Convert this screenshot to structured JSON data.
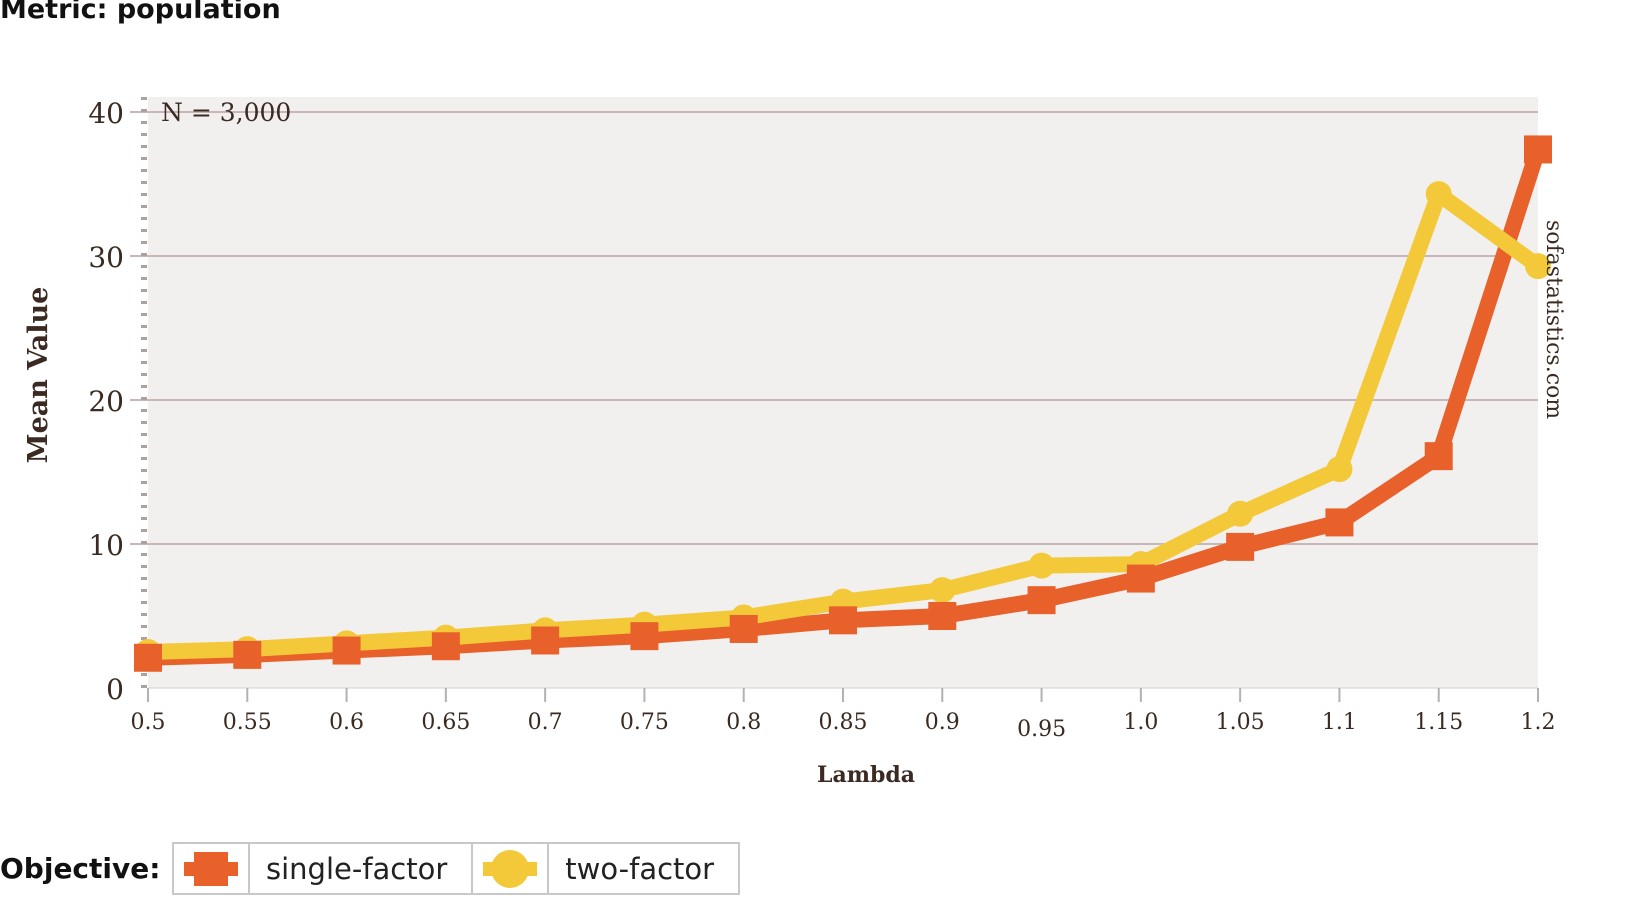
{
  "page": {
    "heading": "Metric: population",
    "legend_title": "Objective:"
  },
  "colors": {
    "plot_background": "#f2f0ef",
    "grid": "#c9b7b7",
    "axis_text": "#3a2a22",
    "single_factor": "#e8612a",
    "two_factor": "#f3c93a"
  },
  "chart_data": {
    "type": "line",
    "title": "",
    "xlabel": "Lambda",
    "ylabel": "Mean Value",
    "annotation": "N = 3,000",
    "watermark": "sofastatistics.com",
    "x": [
      "0.5",
      "0.55",
      "0.6",
      "0.65",
      "0.7",
      "0.75",
      "0.8",
      "0.85",
      "0.9",
      "0.95",
      "1.0",
      "1.05",
      "1.1",
      "1.15",
      "1.2"
    ],
    "ylim": [
      0,
      40
    ],
    "yticks": [
      "0",
      "10",
      "20",
      "30",
      "40"
    ],
    "grid": true,
    "legend_position": "bottom-left",
    "series": [
      {
        "name": "single-factor",
        "marker": "square",
        "color": "#e8612a",
        "values": [
          2.1,
          2.3,
          2.6,
          2.9,
          3.3,
          3.6,
          4.1,
          4.7,
          5.0,
          6.1,
          7.6,
          9.8,
          11.5,
          16.1,
          37.4
        ]
      },
      {
        "name": "two-factor",
        "marker": "circle",
        "color": "#f3c93a",
        "values": [
          2.5,
          2.7,
          3.1,
          3.5,
          4.0,
          4.4,
          4.9,
          6.0,
          6.8,
          8.5,
          8.6,
          12.1,
          15.2,
          34.3,
          29.3
        ]
      }
    ]
  }
}
